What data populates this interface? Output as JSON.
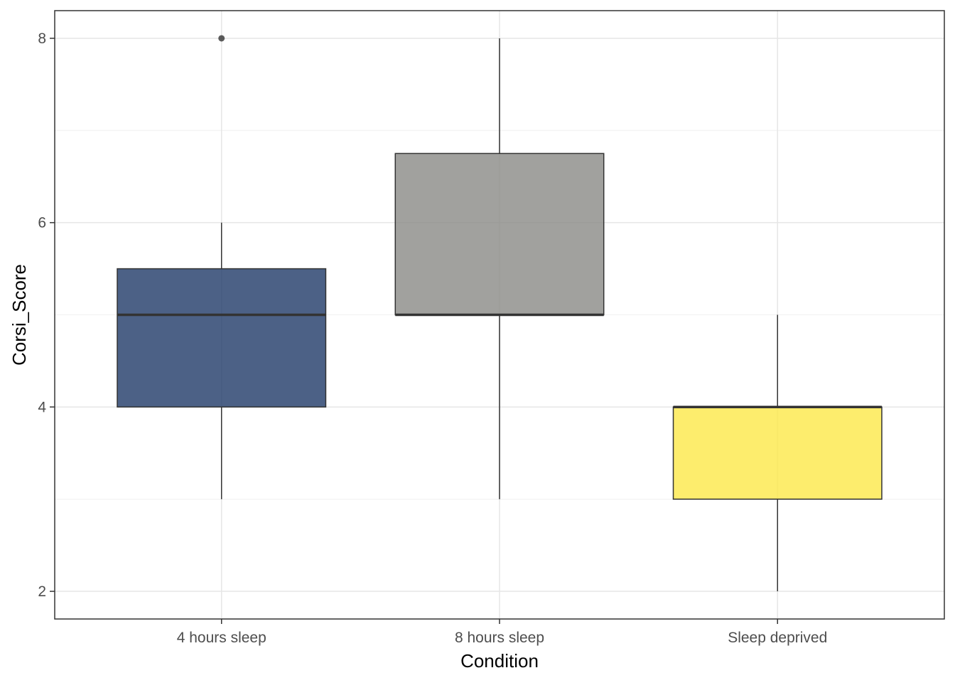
{
  "chart_data": {
    "type": "box",
    "xlabel": "Condition",
    "ylabel": "Corsi_Score",
    "ylim": [
      1.7,
      8.3
    ],
    "y_ticks": [
      2,
      4,
      6,
      8
    ],
    "y_minor_ticks": [
      3,
      5,
      7
    ],
    "grid": true,
    "legend": "none",
    "categories": [
      "4 hours sleep",
      "8 hours sleep",
      "Sleep deprived"
    ],
    "boxes": [
      {
        "category": "4 hours sleep",
        "whisker_low": 3,
        "q1": 4,
        "median": 5,
        "q3": 5.5,
        "whisker_high": 6,
        "outliers": [
          8
        ],
        "fill": "#1f3a68"
      },
      {
        "category": "8 hours sleep",
        "whisker_low": 3,
        "q1": 5,
        "median": 5,
        "q3": 6.75,
        "whisker_high": 8,
        "outliers": [],
        "fill": "#8a8986"
      },
      {
        "category": "Sleep deprived",
        "whisker_low": 2,
        "q1": 3,
        "median": 4,
        "q3": 4,
        "whisker_high": 5,
        "outliers": [],
        "fill": "#fde949"
      }
    ]
  }
}
